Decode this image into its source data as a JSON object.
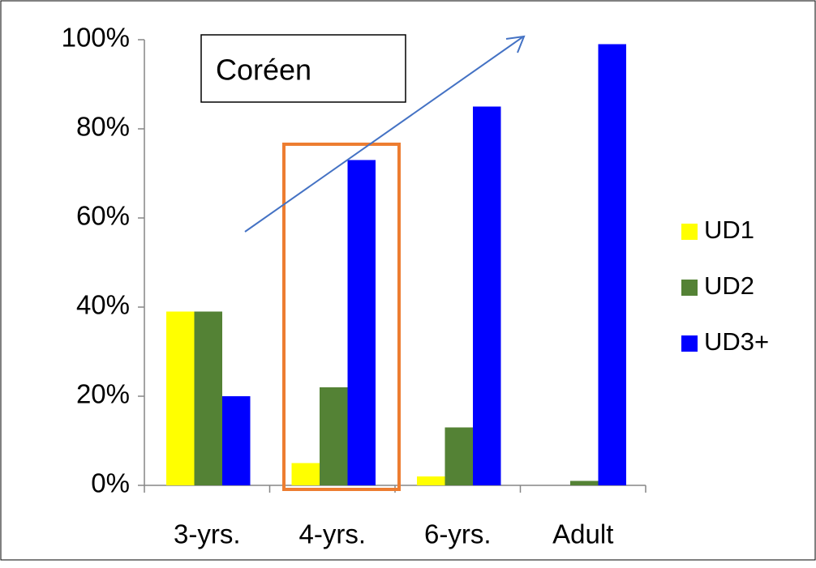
{
  "chart_data": {
    "type": "bar",
    "title": "",
    "xlabel": "",
    "ylabel": "",
    "categories": [
      "3-yrs.",
      "4-yrs.",
      "6-yrs.",
      "Adult"
    ],
    "series": [
      {
        "name": "UD1",
        "color": "#ffff00",
        "values": [
          39,
          5,
          2,
          0
        ]
      },
      {
        "name": "UD2",
        "color": "#548235",
        "values": [
          39,
          22,
          13,
          1
        ]
      },
      {
        "name": "UD3+",
        "color": "#0000ff",
        "values": [
          20,
          73,
          85,
          99
        ]
      }
    ],
    "ylim": [
      0,
      100
    ],
    "yticks": [
      0,
      20,
      40,
      60,
      80,
      100
    ],
    "ytick_labels": [
      "0%",
      "20%",
      "40%",
      "60%",
      "80%",
      "100%"
    ],
    "grid": false,
    "legend_position": "right",
    "annotations": {
      "label_box_text": "Coréen",
      "highlight_category": "4-yrs.",
      "highlight_color": "#ed7d31",
      "arrow_color": "#4472c4"
    }
  }
}
